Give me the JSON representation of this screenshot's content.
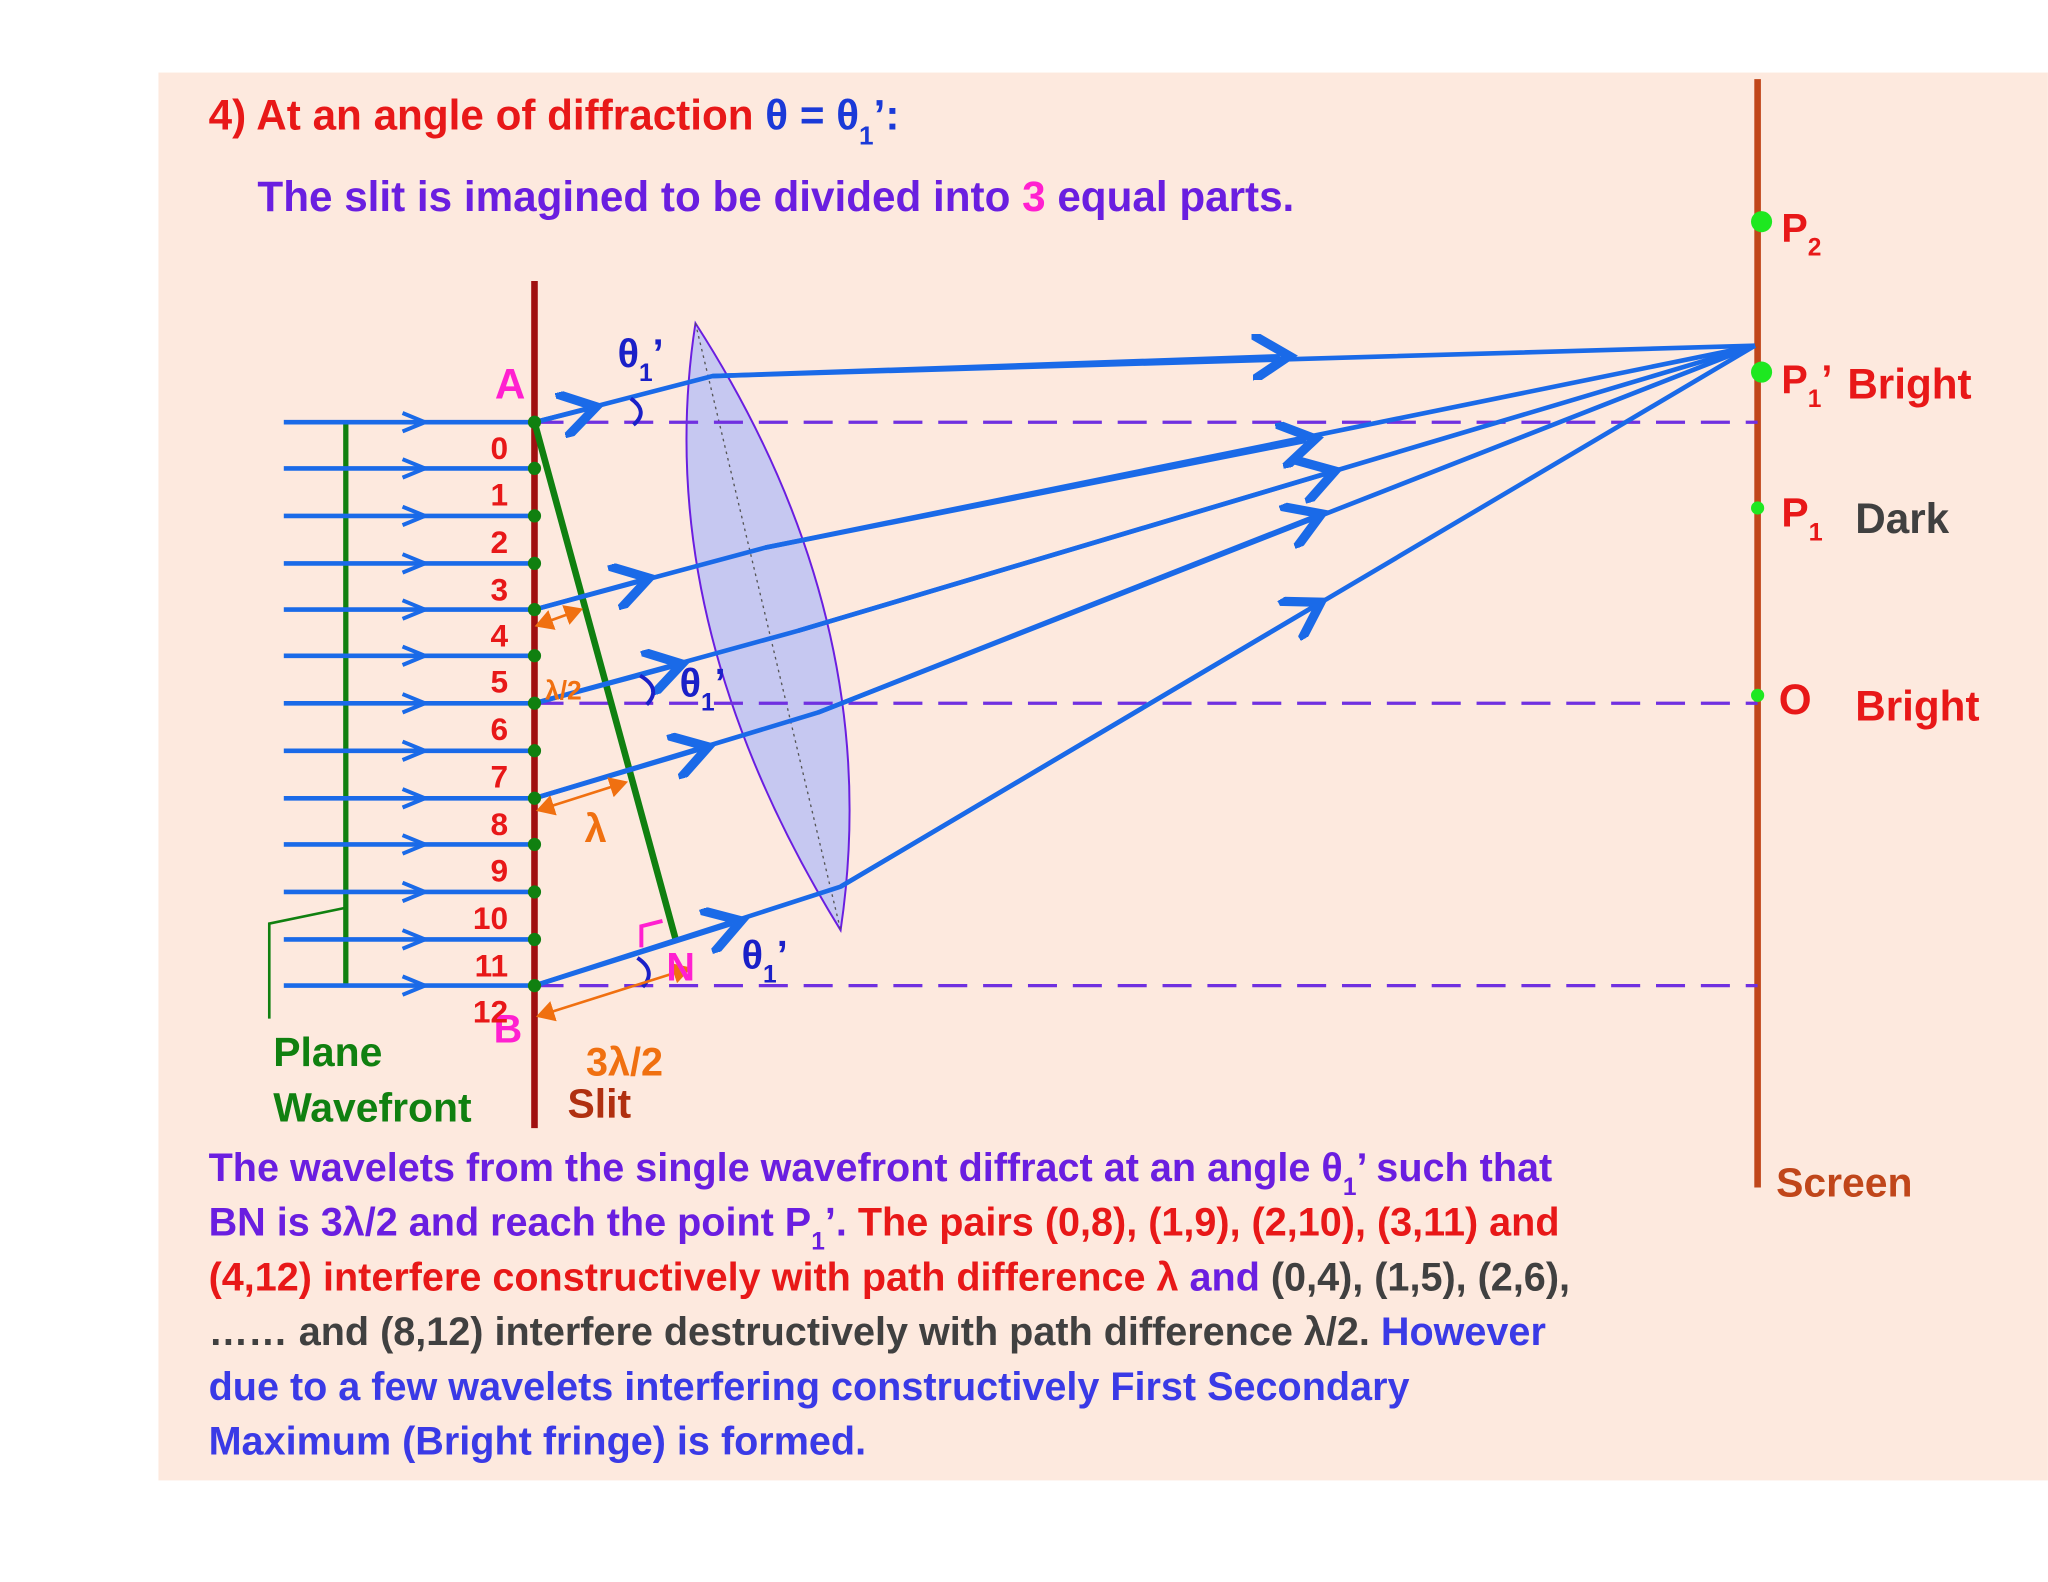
{
  "heading": [
    {
      "text": "4) At an angle of diffraction ",
      "color": "#e81818"
    },
    {
      "text": "θ = θ",
      "color": "#1a3ad8"
    },
    {
      "text": "1",
      "color": "#1a3ad8",
      "sub": true
    },
    {
      "text": "’:",
      "color": "#1a3ad8"
    }
  ],
  "subtitle": [
    {
      "text": "The slit is imagined to be divided into ",
      "color": "#6a1ee0"
    },
    {
      "text": "3",
      "color": "#ff20d0"
    },
    {
      "text": " equal parts.",
      "color": "#6a1ee0"
    }
  ],
  "labels": [
    [
      {
        "text": "A",
        "color": "#ff20d0"
      }
    ],
    [
      {
        "text": "B",
        "color": "#ff20d0"
      }
    ],
    [
      {
        "text": "N",
        "color": "#ff20d0"
      }
    ],
    [
      {
        "text": "θ",
        "color": "#1a20c8"
      },
      {
        "text": "1",
        "color": "#1a20c8",
        "sub": true
      },
      {
        "text": "’",
        "color": "#1a20c8"
      }
    ],
    [
      {
        "text": "θ",
        "color": "#1a20c8"
      },
      {
        "text": "1",
        "color": "#1a20c8",
        "sub": true
      },
      {
        "text": "’",
        "color": "#1a20c8"
      }
    ],
    [
      {
        "text": "θ",
        "color": "#1a20c8"
      },
      {
        "text": "1",
        "color": "#1a20c8",
        "sub": true
      },
      {
        "text": "’",
        "color": "#1a20c8"
      }
    ],
    [
      {
        "text": "λ/2",
        "color": "#f07010"
      }
    ],
    [
      {
        "text": "λ",
        "color": "#f07010"
      }
    ],
    [
      {
        "text": "3λ/2",
        "color": "#f07010"
      }
    ],
    [
      {
        "text": "Plane",
        "color": "#108010"
      }
    ],
    [
      {
        "text": "Wavefront",
        "color": "#108010"
      }
    ],
    [
      {
        "text": "Slit",
        "color": "#b03010"
      }
    ],
    [
      {
        "text": "P",
        "color": "#e81818"
      },
      {
        "text": "2",
        "color": "#e81818",
        "sub": true
      }
    ],
    [
      {
        "text": "P",
        "color": "#e81818"
      },
      {
        "text": "1",
        "color": "#e81818",
        "sub": true
      },
      {
        "text": "’",
        "color": "#e81818"
      }
    ],
    [
      {
        "text": "Bright",
        "color": "#e81818"
      }
    ],
    [
      {
        "text": "P",
        "color": "#e81818"
      },
      {
        "text": "1",
        "color": "#e81818",
        "sub": true
      }
    ],
    [
      {
        "text": "Dark",
        "color": "#404040"
      }
    ],
    [
      {
        "text": "O",
        "color": "#e81818"
      }
    ],
    [
      {
        "text": "Bright",
        "color": "#e81818"
      }
    ],
    [
      {
        "text": "Screen",
        "color": "#c0461a"
      }
    ]
  ],
  "slit_numbers": [
    "0",
    "1",
    "2",
    "3",
    "4",
    "5",
    "6",
    "7",
    "8",
    "9",
    "10",
    "11",
    "12"
  ],
  "paragraph": [
    [
      {
        "text": "The wavelets from the single wavefront diffract at an angle θ",
        "color": "#6a1ee0"
      },
      {
        "text": "1",
        "color": "#6a1ee0",
        "sub": true
      },
      {
        "text": "’ such that",
        "color": "#6a1ee0"
      }
    ],
    [
      {
        "text": "BN is 3λ/2 and reach the point P",
        "color": "#6a1ee0"
      },
      {
        "text": "1",
        "color": "#6a1ee0",
        "sub": true
      },
      {
        "text": "’.",
        "color": "#6a1ee0"
      },
      {
        "text": " The pairs (0,8), (1,9), (2,10), (3,11) and",
        "color": "#e81818"
      }
    ],
    [
      {
        "text": "(4,12) interfere constructively with path difference λ",
        "color": "#e81818"
      },
      {
        "text": " and",
        "color": "#6a1ee0"
      },
      {
        "text": " (0,4), (1,5), (2,6),",
        "color": "#404040"
      }
    ],
    [
      {
        "text": "…… and (8,12) interfere destructively with path difference λ/2.",
        "color": "#404040"
      },
      {
        "text": " However",
        "color": "#3a3ae6"
      }
    ],
    [
      {
        "text": "due to a few wavelets interfering constructively First Secondary",
        "color": "#3a3ae6"
      }
    ],
    [
      {
        "text": "Maximum (Bright fringe) is formed.",
        "color": "#3a3ae6"
      }
    ]
  ]
}
